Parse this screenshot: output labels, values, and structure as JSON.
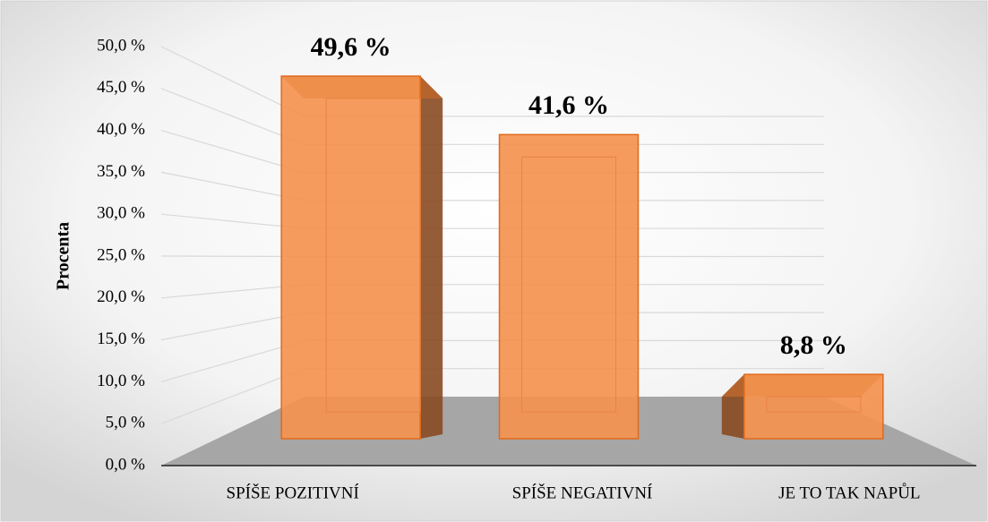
{
  "chart_data": {
    "type": "bar3d",
    "y_axis_label": "Procenta",
    "categories": [
      "SPÍŠE POZITIVNÍ",
      "SPÍŠE NEGATIVNÍ",
      "JE TO TAK NAPŮL"
    ],
    "values": [
      49.6,
      41.6,
      8.8
    ],
    "value_labels": [
      "49,6 %",
      "41,6 %",
      "8,8 %"
    ],
    "color": "#f4924f",
    "ylim": [
      0,
      50
    ],
    "yticks": [
      {
        "value": 0,
        "label": "0,0 %"
      },
      {
        "value": 5,
        "label": "5,0 %"
      },
      {
        "value": 10,
        "label": "10,0 %"
      },
      {
        "value": 15,
        "label": "15,0 %"
      },
      {
        "value": 20,
        "label": "20,0 %"
      },
      {
        "value": 25,
        "label": "25,0 %"
      },
      {
        "value": 30,
        "label": "30,0 %"
      },
      {
        "value": 35,
        "label": "35,0 %"
      },
      {
        "value": 40,
        "label": "40,0 %"
      },
      {
        "value": 45,
        "label": "45,0 %"
      },
      {
        "value": 50,
        "label": "50,0 %"
      }
    ],
    "grid": true
  }
}
